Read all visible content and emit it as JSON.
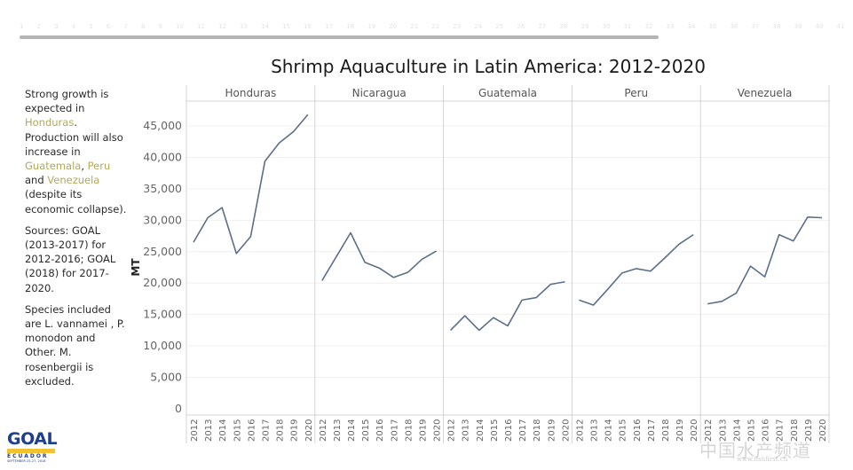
{
  "scrollbar": {
    "tick_labels": [
      "1",
      "2",
      "3",
      "4",
      "5",
      "6",
      "7",
      "8",
      "9",
      "10",
      "11",
      "12",
      "13",
      "14",
      "15",
      "16",
      "17",
      "18",
      "19",
      "20",
      "21",
      "22",
      "23",
      "24",
      "25",
      "26",
      "27",
      "28",
      "29",
      "30",
      "31",
      "32",
      "33",
      "34",
      "35",
      "36",
      "37",
      "38",
      "39",
      "40",
      "41"
    ]
  },
  "sidebar": {
    "p1": {
      "t1": "Strong growth is expected in ",
      "h1": "Honduras",
      "t2": ". Production will also increase in ",
      "h2": "Guatemala",
      "t3": ", ",
      "h3": "Peru",
      "t4": " and ",
      "h4": "Venezuela",
      "t5": " (despite its economic collapse)."
    },
    "p2": "Sources: GOAL (2013-2017) for 2012-2016; GOAL (2018) for 2017-2020.",
    "p3": "Species included are L. vannamei , P. monodon and Other.  M. rosenbergii is excluded.",
    "highlight_color": "#b4a95a"
  },
  "logo": {
    "name": "GOAL",
    "band": "GUAYAQUIL",
    "sub": "ECUADOR",
    "date": "SEPTEMBER 25-27, 2018"
  },
  "watermark": {
    "text": "中国水产频道",
    "url": "www.fishfirst.cn"
  },
  "chart_data": {
    "type": "line",
    "title": "Shrimp Aquaculture in Latin America: 2012-2020",
    "xlabel": "",
    "ylabel": "MT",
    "ylim": [
      0,
      48000
    ],
    "yticks": [
      0,
      5000,
      10000,
      15000,
      20000,
      25000,
      30000,
      35000,
      40000,
      45000
    ],
    "ytick_labels": [
      "0",
      "5,000",
      "10,000",
      "15,000",
      "20,000",
      "25,000",
      "30,000",
      "35,000",
      "40,000",
      "45,000"
    ],
    "x": [
      "2012",
      "2013",
      "2014",
      "2015",
      "2016",
      "2017",
      "2018",
      "2019",
      "2020"
    ],
    "grid": true,
    "line_color": "#5b6f8a",
    "panels": [
      {
        "name": "Honduras",
        "values": [
          26500,
          30400,
          32000,
          24700,
          27400,
          39400,
          42300,
          44100,
          46800
        ]
      },
      {
        "name": "Nicaragua",
        "values": [
          20400,
          24200,
          28000,
          23300,
          22400,
          20900,
          21700,
          23800,
          25100
        ]
      },
      {
        "name": "Guatemala",
        "values": [
          12500,
          14800,
          12500,
          14500,
          13200,
          17300,
          17700,
          19800,
          20200
        ]
      },
      {
        "name": "Peru",
        "values": [
          17300,
          16500,
          19000,
          21600,
          22300,
          21900,
          24000,
          26200,
          27700
        ]
      },
      {
        "name": "Venezuela",
        "values": [
          16700,
          17100,
          18400,
          22700,
          21000,
          27700,
          26700,
          30500,
          30400
        ]
      }
    ]
  }
}
